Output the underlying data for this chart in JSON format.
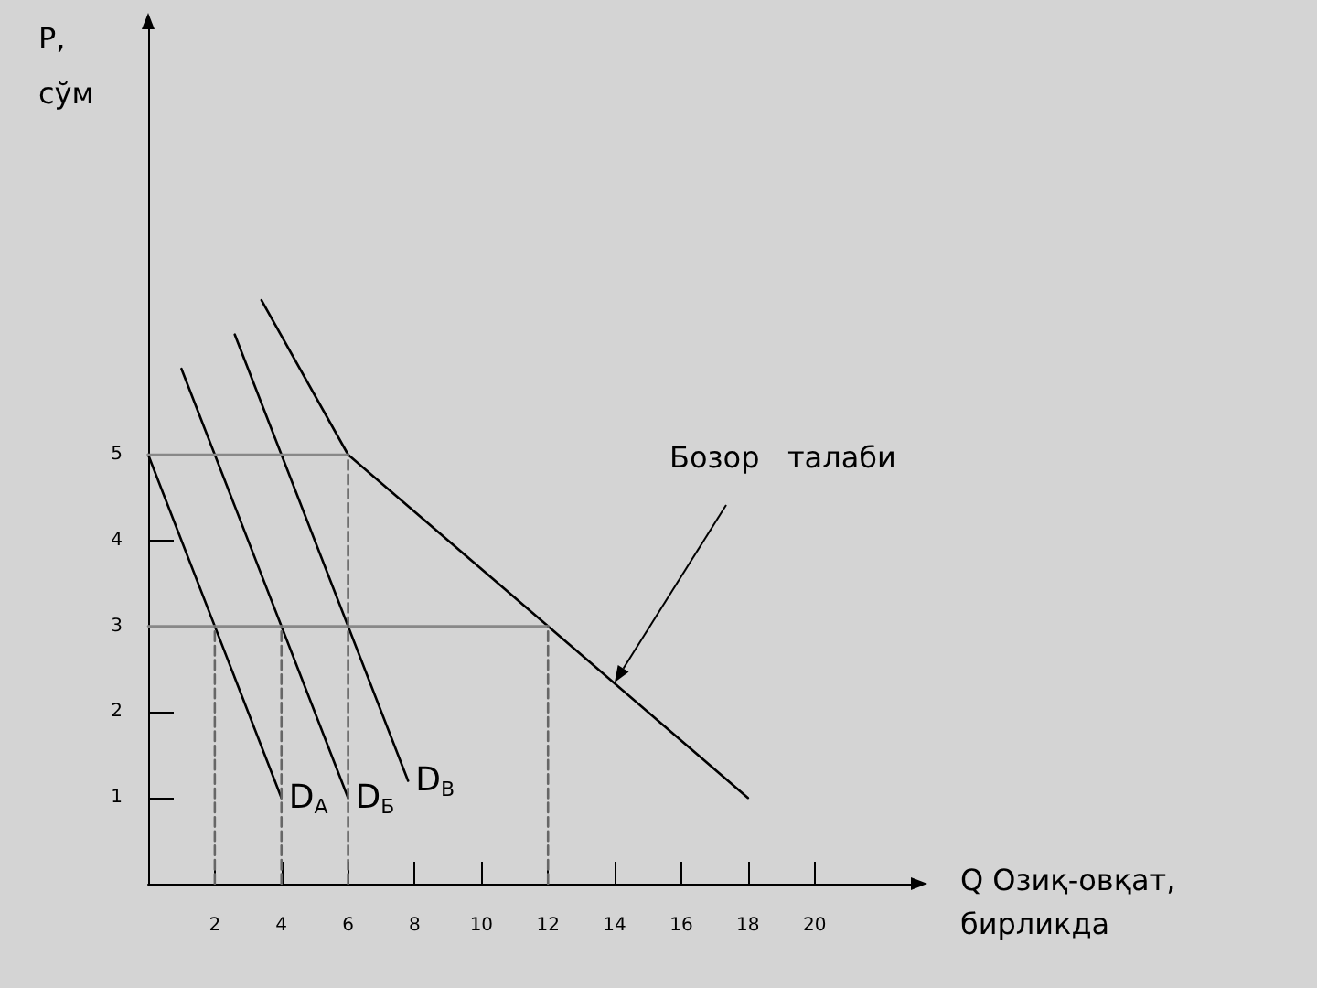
{
  "chart_data": {
    "type": "line",
    "xlabel": "Q Озиқ-овқат, бирликда",
    "ylabel": "P, сўм",
    "xlim": [
      0,
      23
    ],
    "ylim": [
      0,
      10
    ],
    "xticks": [
      2,
      4,
      6,
      8,
      10,
      12,
      14,
      16,
      18,
      20
    ],
    "yticks": [
      1,
      2,
      3,
      4,
      5
    ],
    "grid": false,
    "legend": false,
    "marker": "none",
    "line_style": "solid",
    "series": [
      {
        "name": "D$_{А}$",
        "color": "#000000",
        "x": [
          0,
          4
        ],
        "values": [
          5,
          1
        ]
      },
      {
        "name": "D$_{Б}$",
        "color": "#000000",
        "x": [
          1,
          6
        ],
        "values": [
          6,
          1
        ]
      },
      {
        "name": "D$_{В}$",
        "color": "#000000",
        "x": [
          2.6,
          7.8
        ],
        "values": [
          6.4,
          1.2
        ]
      },
      {
        "color": "#000000",
        "x": [
          3.4,
          6,
          12,
          18
        ],
        "values": [
          6.8,
          5,
          3,
          1
        ]
      },
      {
        "color": "#888888",
        "x": [
          0,
          6
        ],
        "values": [
          5,
          5
        ]
      },
      {
        "color": "#888888",
        "x": [
          0,
          12
        ],
        "values": [
          3,
          3
        ]
      },
      {
        "color": "#666666",
        "line_style": "dashed",
        "x": [
          2,
          2
        ],
        "values": [
          0,
          3
        ]
      },
      {
        "color": "#666666",
        "line_style": "dashed",
        "x": [
          4,
          4
        ],
        "values": [
          0,
          3
        ]
      },
      {
        "color": "#666666",
        "line_style": "dashed",
        "x": [
          6,
          6
        ],
        "values": [
          0,
          5
        ]
      },
      {
        "color": "#666666",
        "line_style": "dashed",
        "x": [
          12,
          12
        ],
        "values": [
          0,
          3
        ]
      }
    ],
    "annotations": [
      "Бозор   талаби"
    ]
  }
}
